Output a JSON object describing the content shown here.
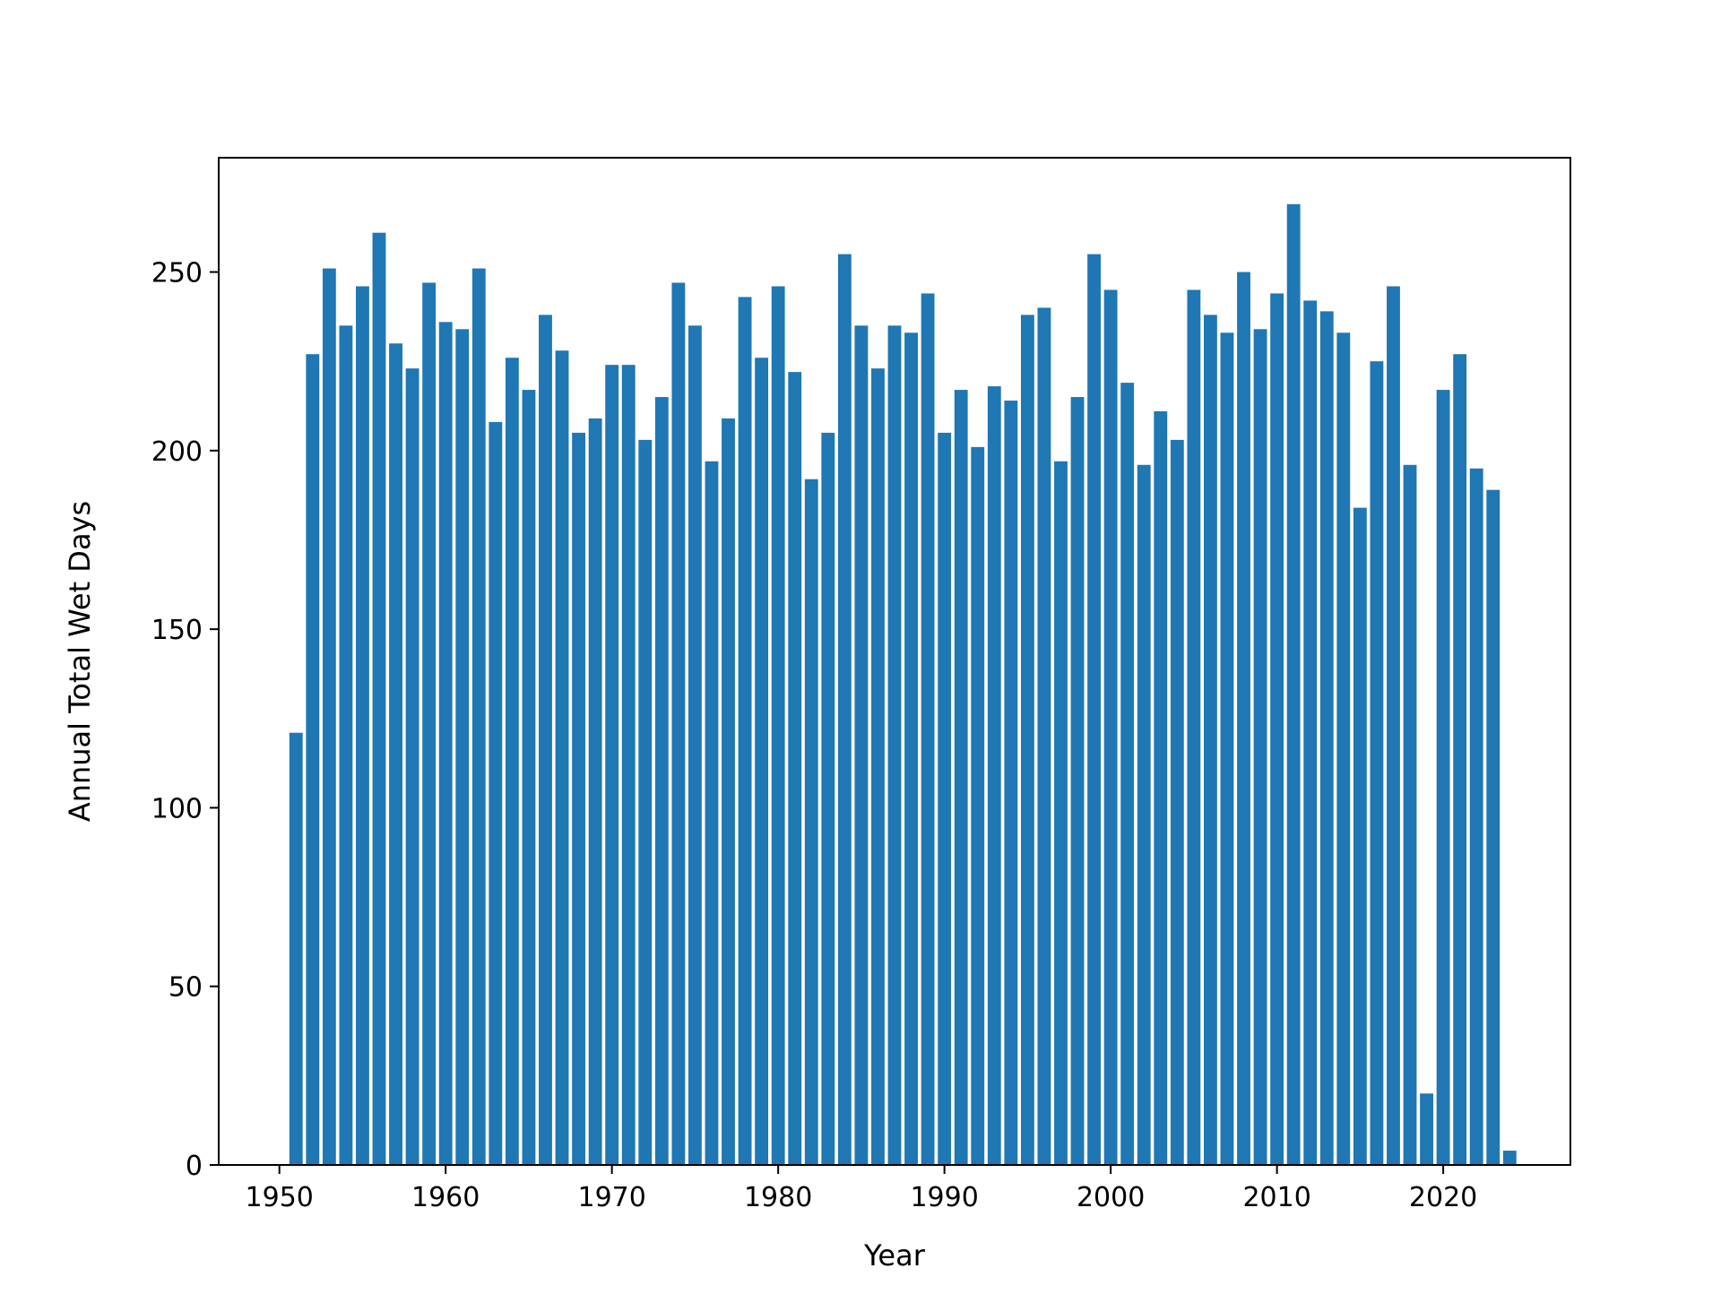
{
  "chart_data": {
    "type": "bar",
    "title": "",
    "xlabel": "Year",
    "ylabel": "Annual Total Wet Days",
    "xlim": [
      1946.35,
      2027.65
    ],
    "ylim": [
      0,
      282
    ],
    "xticks": [
      1950,
      1960,
      1970,
      1980,
      1990,
      2000,
      2010,
      2020
    ],
    "yticks": [
      0,
      50,
      100,
      150,
      200,
      250
    ],
    "grid": false,
    "bar_color": "#1f77b4",
    "bar_width_years": 0.8,
    "x": [
      1951,
      1952,
      1953,
      1954,
      1955,
      1956,
      1957,
      1958,
      1959,
      1960,
      1961,
      1962,
      1963,
      1964,
      1965,
      1966,
      1967,
      1968,
      1969,
      1970,
      1971,
      1972,
      1973,
      1974,
      1975,
      1976,
      1977,
      1978,
      1979,
      1980,
      1981,
      1982,
      1983,
      1984,
      1985,
      1986,
      1987,
      1988,
      1989,
      1990,
      1991,
      1992,
      1993,
      1994,
      1995,
      1996,
      1997,
      1998,
      1999,
      2000,
      2001,
      2002,
      2003,
      2004,
      2005,
      2006,
      2007,
      2008,
      2009,
      2010,
      2011,
      2012,
      2013,
      2014,
      2015,
      2016,
      2017,
      2018,
      2019,
      2020,
      2021,
      2022,
      2023,
      2024
    ],
    "values": [
      121,
      227,
      251,
      235,
      246,
      261,
      230,
      223,
      247,
      236,
      234,
      251,
      208,
      226,
      217,
      238,
      228,
      205,
      209,
      224,
      224,
      203,
      215,
      247,
      235,
      197,
      209,
      243,
      226,
      246,
      222,
      192,
      205,
      255,
      235,
      223,
      235,
      233,
      244,
      205,
      217,
      201,
      218,
      214,
      238,
      240,
      197,
      215,
      255,
      245,
      219,
      196,
      211,
      203,
      245,
      238,
      233,
      250,
      234,
      244,
      269,
      242,
      239,
      233,
      184,
      225,
      246,
      196,
      20,
      217,
      227,
      195,
      189,
      4
    ]
  }
}
